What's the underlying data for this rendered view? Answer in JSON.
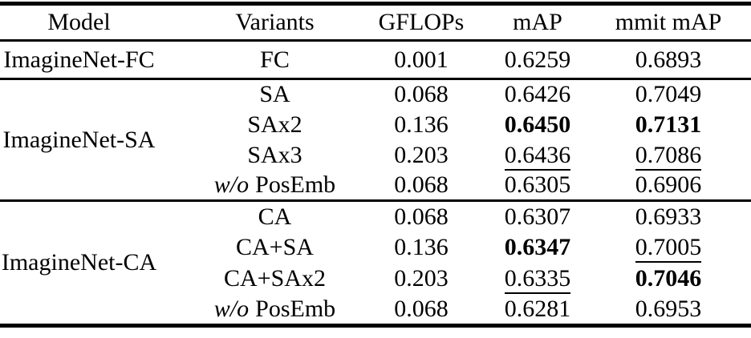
{
  "table": {
    "columns": {
      "model": "Model",
      "variants": "Variants",
      "gflops": "GFLOPs",
      "map": "mAP",
      "mmit_map": "mmit mAP"
    },
    "text_color": "#000000",
    "background_color": "#ffffff",
    "sections": [
      {
        "model": "ImagineNet-FC",
        "rows": [
          {
            "variant": "FC",
            "gflops": "0.001",
            "map": "0.6259",
            "mmit": "0.6893"
          }
        ]
      },
      {
        "model": "ImagineNet-SA",
        "rows": [
          {
            "variant": "SA",
            "gflops": "0.068",
            "map": "0.6426",
            "mmit": "0.7049"
          },
          {
            "variant": "SAx2",
            "gflops": "0.136",
            "map": "0.6450",
            "mmit": "0.7131"
          },
          {
            "variant": "SAx3",
            "gflops": "0.203",
            "map": "0.6436",
            "mmit": "0.7086"
          },
          {
            "variant_italic": "w/o",
            "variant": "PosEmb",
            "gflops": "0.068",
            "map": "0.6305",
            "mmit": "0.6906"
          }
        ]
      },
      {
        "model": "ImagineNet-CA",
        "rows": [
          {
            "variant": "CA",
            "gflops": "0.068",
            "map": "0.6307",
            "mmit": "0.6933"
          },
          {
            "variant": "CA+SA",
            "gflops": "0.136",
            "map": "0.6347",
            "mmit": "0.7005"
          },
          {
            "variant": "CA+SAx2",
            "gflops": "0.203",
            "map": "0.6335",
            "mmit": "0.7046"
          },
          {
            "variant_italic": "w/o",
            "variant": "PosEmb",
            "gflops": "0.068",
            "map": "0.6281",
            "mmit": "0.6953"
          }
        ]
      }
    ]
  }
}
